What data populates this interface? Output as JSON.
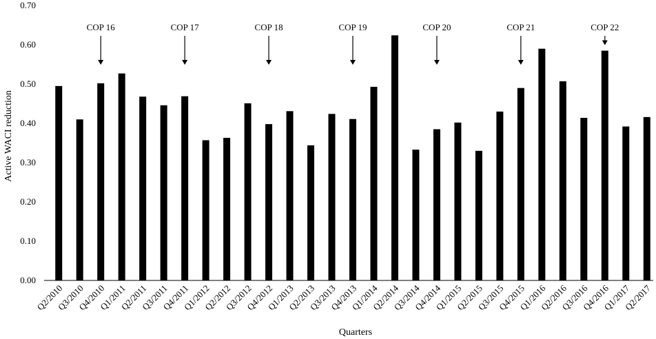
{
  "chart_data": {
    "type": "bar",
    "title": "",
    "xlabel": "Quarters",
    "ylabel": "Active WACI reduction",
    "ylim": [
      0,
      0.7
    ],
    "yticks": [
      "0.00",
      "0.10",
      "0.20",
      "0.30",
      "0.40",
      "0.50",
      "0.60",
      "0.70"
    ],
    "grid": false,
    "legend": "none",
    "bar_color": "#000000",
    "categories": [
      "Q2/2010",
      "Q3/2010",
      "Q4/2010",
      "Q1/2011",
      "Q2/2011",
      "Q3/2011",
      "Q4/2011",
      "Q1/2012",
      "Q2/2012",
      "Q3/2012",
      "Q4/2012",
      "Q1/2013",
      "Q2/2013",
      "Q3/2013",
      "Q4/2013",
      "Q1/2014",
      "Q2/2014",
      "Q3/2014",
      "Q4/2014",
      "Q1/2015",
      "Q2/2015",
      "Q3/2015",
      "Q4/2015",
      "Q1/2016",
      "Q2/2016",
      "Q3/2016",
      "Q4/2016",
      "Q1/2017",
      "Q2/2017"
    ],
    "values": [
      0.495,
      0.41,
      0.502,
      0.527,
      0.468,
      0.446,
      0.469,
      0.357,
      0.363,
      0.451,
      0.398,
      0.431,
      0.344,
      0.424,
      0.411,
      0.493,
      0.624,
      0.333,
      0.385,
      0.402,
      0.33,
      0.43,
      0.49,
      0.59,
      0.507,
      0.414,
      0.585,
      0.392,
      0.416
    ],
    "annotations": [
      {
        "text": "COP 16",
        "category": "Q4/2010"
      },
      {
        "text": "COP 17",
        "category": "Q4/2011"
      },
      {
        "text": "COP 18",
        "category": "Q4/2012"
      },
      {
        "text": "COP 19",
        "category": "Q4/2013"
      },
      {
        "text": "COP 20",
        "category": "Q4/2014"
      },
      {
        "text": "COP 21",
        "category": "Q4/2015"
      },
      {
        "text": "COP 22",
        "category": "Q4/2016"
      }
    ]
  }
}
